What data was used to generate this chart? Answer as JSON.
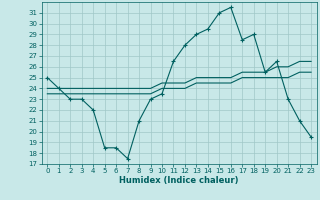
{
  "title": "",
  "xlabel": "Humidex (Indice chaleur)",
  "ylabel": "",
  "background_color": "#c8e8e8",
  "grid_color": "#a0c8c8",
  "line_color": "#006060",
  "xlim": [
    -0.5,
    23.5
  ],
  "ylim": [
    17,
    32
  ],
  "xticks": [
    0,
    1,
    2,
    3,
    4,
    5,
    6,
    7,
    8,
    9,
    10,
    11,
    12,
    13,
    14,
    15,
    16,
    17,
    18,
    19,
    20,
    21,
    22,
    23
  ],
  "yticks": [
    17,
    18,
    19,
    20,
    21,
    22,
    23,
    24,
    25,
    26,
    27,
    28,
    29,
    30,
    31
  ],
  "series1_x": [
    0,
    1,
    2,
    3,
    4,
    5,
    6,
    7,
    8,
    9,
    10,
    11,
    12,
    13,
    14,
    15,
    16,
    17,
    18,
    19,
    20,
    21,
    22,
    23
  ],
  "series1_y": [
    25.0,
    24.0,
    23.0,
    23.0,
    22.0,
    18.5,
    18.5,
    17.5,
    21.0,
    23.0,
    23.5,
    26.5,
    28.0,
    29.0,
    29.5,
    31.0,
    31.5,
    28.5,
    29.0,
    25.5,
    26.5,
    23.0,
    21.0,
    19.5
  ],
  "series2_x": [
    0,
    1,
    2,
    3,
    4,
    5,
    6,
    7,
    8,
    9,
    10,
    11,
    12,
    13,
    14,
    15,
    16,
    17,
    18,
    19,
    20,
    21,
    22,
    23
  ],
  "series2_y": [
    23.5,
    23.5,
    23.5,
    23.5,
    23.5,
    23.5,
    23.5,
    23.5,
    23.5,
    23.5,
    24.0,
    24.0,
    24.0,
    24.5,
    24.5,
    24.5,
    24.5,
    25.0,
    25.0,
    25.0,
    25.0,
    25.0,
    25.5,
    25.5
  ],
  "series3_x": [
    0,
    1,
    2,
    3,
    4,
    5,
    6,
    7,
    8,
    9,
    10,
    11,
    12,
    13,
    14,
    15,
    16,
    17,
    18,
    19,
    20,
    21,
    22,
    23
  ],
  "series3_y": [
    24.0,
    24.0,
    24.0,
    24.0,
    24.0,
    24.0,
    24.0,
    24.0,
    24.0,
    24.0,
    24.5,
    24.5,
    24.5,
    25.0,
    25.0,
    25.0,
    25.0,
    25.5,
    25.5,
    25.5,
    26.0,
    26.0,
    26.5,
    26.5
  ],
  "label_fontsize": 5.0,
  "xlabel_fontsize": 6.0
}
